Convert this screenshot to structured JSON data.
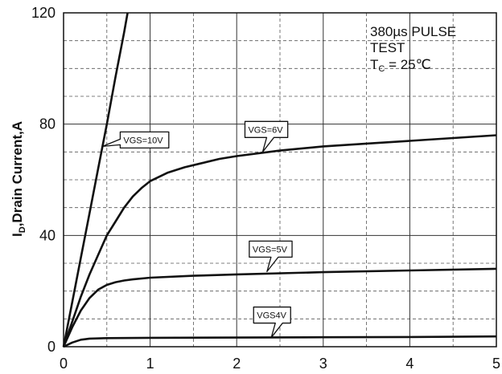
{
  "chart_data": {
    "type": "line",
    "xlabel": "",
    "ylabel": "I_D,Drain Current,A",
    "ylabel_parts": {
      "main": "I",
      "sub": "D",
      "rest": ",Drain Current,A"
    },
    "xlim": [
      0,
      5
    ],
    "ylim": [
      0,
      120
    ],
    "xticks": [
      0,
      1,
      2,
      3,
      4,
      5
    ],
    "yticks": [
      0,
      40,
      80,
      120
    ],
    "grid": true,
    "annotation_lines": [
      "380µs PULSE",
      "TEST"
    ],
    "annotation_tc": {
      "main": "T",
      "sub": "C",
      "rest": " = 25℃"
    },
    "series": [
      {
        "name": "VGS=10V",
        "x": [
          0,
          0.1,
          0.2,
          0.3,
          0.4,
          0.5,
          0.6,
          0.7,
          0.74
        ],
        "y": [
          0,
          16,
          32,
          48,
          64,
          80,
          97,
          113,
          120
        ]
      },
      {
        "name": "VGS=6V",
        "x": [
          0,
          0.1,
          0.2,
          0.3,
          0.4,
          0.5,
          0.6,
          0.7,
          0.8,
          0.9,
          1.0,
          1.2,
          1.4,
          1.6,
          1.8,
          2.0,
          2.5,
          3.0,
          3.5,
          4.0,
          4.5,
          5.0
        ],
        "y": [
          0,
          9,
          18,
          26,
          33,
          40,
          45,
          50,
          54,
          57,
          59.5,
          62.5,
          64.5,
          66,
          67.5,
          68.5,
          70.5,
          72,
          73,
          74,
          75,
          76
        ]
      },
      {
        "name": "VGS=5V",
        "x": [
          0,
          0.1,
          0.2,
          0.3,
          0.4,
          0.5,
          0.6,
          0.7,
          0.8,
          1.0,
          1.5,
          2.0,
          3.0,
          4.0,
          5.0
        ],
        "y": [
          0,
          7,
          13,
          17.5,
          20.5,
          22.2,
          23.2,
          23.8,
          24.2,
          24.8,
          25.5,
          26,
          26.8,
          27.4,
          28
        ]
      },
      {
        "name": "VGS4V",
        "x": [
          0,
          0.1,
          0.2,
          0.3,
          0.5,
          1.0,
          2.0,
          3.0,
          4.0,
          5.0
        ],
        "y": [
          0,
          1.5,
          2.5,
          2.9,
          3.1,
          3.2,
          3.3,
          3.4,
          3.5,
          3.7
        ]
      }
    ],
    "callouts": [
      {
        "label": "VGS=10V",
        "series": "VGS=10V",
        "x": 0.45,
        "y": 72
      },
      {
        "label": "VGS=6V",
        "series": "VGS=6V",
        "x": 2.3,
        "y": 70
      },
      {
        "label": "VGS=5V",
        "series": "VGS=5V",
        "x": 2.35,
        "y": 27
      },
      {
        "label": "VGS4V",
        "series": "VGS4V",
        "x": 2.4,
        "y": 3.3
      }
    ]
  }
}
